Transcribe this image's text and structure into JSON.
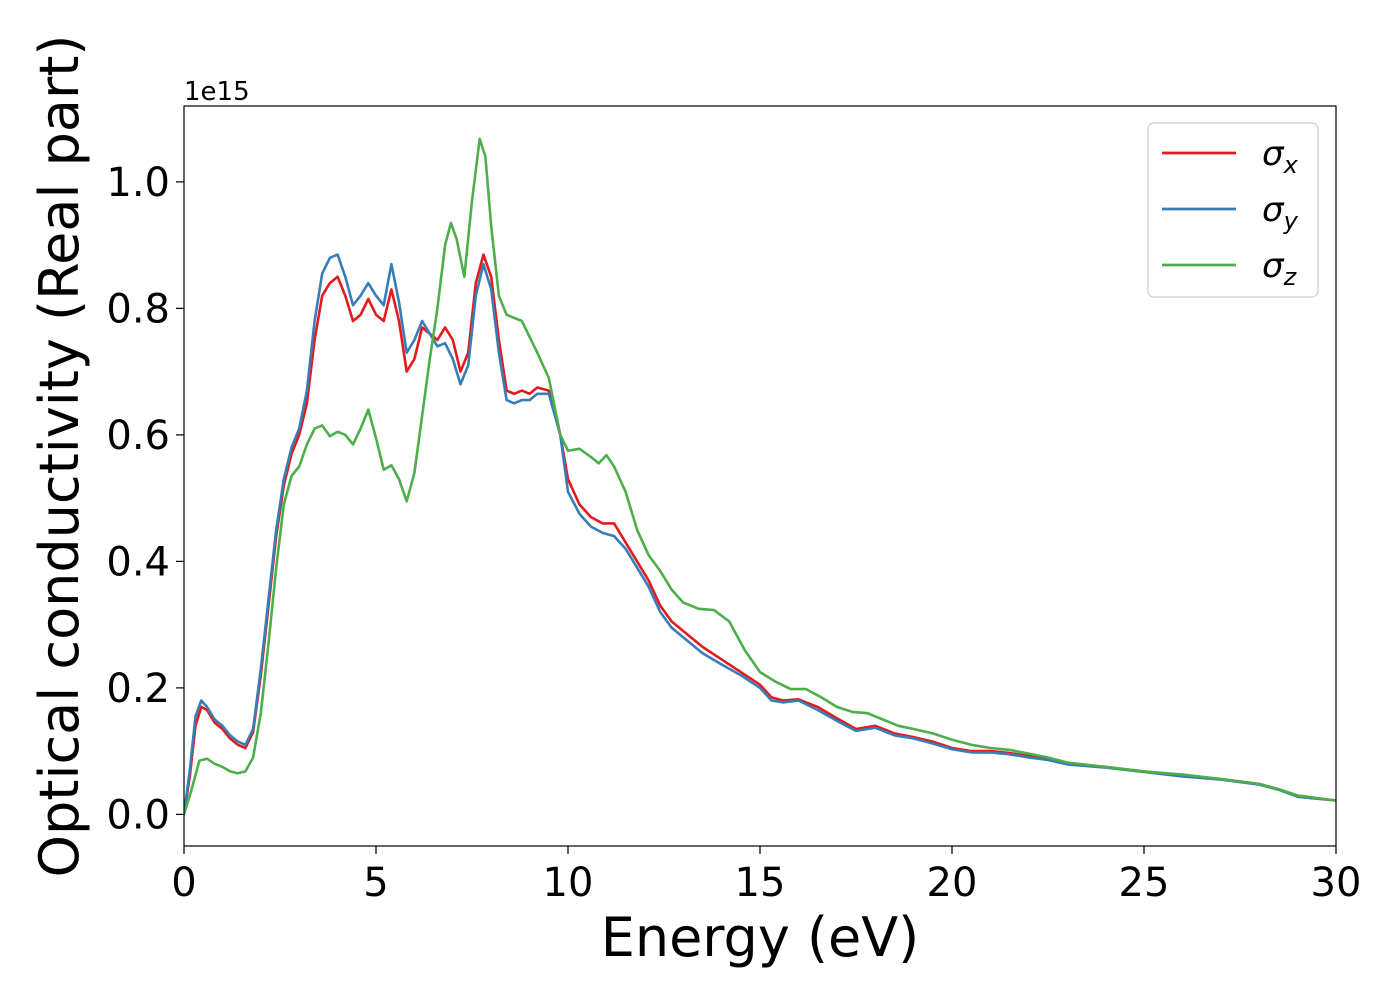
{
  "chart_data": {
    "type": "line",
    "xlabel": "Energy (eV)",
    "ylabel": "Optical conductivity (Real part)",
    "y_offset_label": "1e15",
    "xlim": [
      0,
      30
    ],
    "ylim": [
      -0.05,
      1.12
    ],
    "x_ticks": [
      0,
      5,
      10,
      15,
      20,
      25,
      30
    ],
    "x_tick_labels": [
      "0",
      "5",
      "10",
      "15",
      "20",
      "25",
      "30"
    ],
    "y_ticks": [
      0.0,
      0.2,
      0.4,
      0.6,
      0.8,
      1.0
    ],
    "y_tick_labels": [
      "0.0",
      "0.2",
      "0.4",
      "0.6",
      "0.8",
      "1.0"
    ],
    "grid": false,
    "legend_position": "top-right",
    "series": [
      {
        "name": "σx",
        "legend_symbol": "σ",
        "legend_subscript": "x",
        "color": "#e41a1c",
        "points": [
          [
            0,
            0.0
          ],
          [
            0.15,
            0.06
          ],
          [
            0.3,
            0.14
          ],
          [
            0.45,
            0.17
          ],
          [
            0.6,
            0.165
          ],
          [
            0.8,
            0.145
          ],
          [
            1.0,
            0.135
          ],
          [
            1.2,
            0.12
          ],
          [
            1.4,
            0.11
          ],
          [
            1.6,
            0.105
          ],
          [
            1.8,
            0.13
          ],
          [
            2.0,
            0.22
          ],
          [
            2.2,
            0.33
          ],
          [
            2.4,
            0.44
          ],
          [
            2.6,
            0.52
          ],
          [
            2.8,
            0.57
          ],
          [
            3.0,
            0.6
          ],
          [
            3.2,
            0.65
          ],
          [
            3.4,
            0.75
          ],
          [
            3.6,
            0.82
          ],
          [
            3.8,
            0.84
          ],
          [
            4.0,
            0.85
          ],
          [
            4.2,
            0.82
          ],
          [
            4.4,
            0.78
          ],
          [
            4.6,
            0.79
          ],
          [
            4.8,
            0.815
          ],
          [
            5.0,
            0.79
          ],
          [
            5.2,
            0.78
          ],
          [
            5.4,
            0.83
          ],
          [
            5.6,
            0.78
          ],
          [
            5.8,
            0.7
          ],
          [
            6.0,
            0.72
          ],
          [
            6.2,
            0.77
          ],
          [
            6.4,
            0.76
          ],
          [
            6.6,
            0.75
          ],
          [
            6.8,
            0.77
          ],
          [
            7.0,
            0.75
          ],
          [
            7.2,
            0.7
          ],
          [
            7.4,
            0.73
          ],
          [
            7.6,
            0.84
          ],
          [
            7.8,
            0.885
          ],
          [
            8.0,
            0.85
          ],
          [
            8.2,
            0.75
          ],
          [
            8.4,
            0.67
          ],
          [
            8.6,
            0.665
          ],
          [
            8.8,
            0.67
          ],
          [
            9.0,
            0.665
          ],
          [
            9.2,
            0.675
          ],
          [
            9.5,
            0.67
          ],
          [
            9.8,
            0.6
          ],
          [
            10.0,
            0.53
          ],
          [
            10.3,
            0.49
          ],
          [
            10.6,
            0.47
          ],
          [
            10.9,
            0.46
          ],
          [
            11.2,
            0.46
          ],
          [
            11.5,
            0.43
          ],
          [
            11.8,
            0.4
          ],
          [
            12.1,
            0.37
          ],
          [
            12.4,
            0.33
          ],
          [
            12.7,
            0.305
          ],
          [
            13.0,
            0.29
          ],
          [
            13.5,
            0.265
          ],
          [
            14.0,
            0.245
          ],
          [
            14.5,
            0.225
          ],
          [
            15.0,
            0.205
          ],
          [
            15.3,
            0.185
          ],
          [
            15.6,
            0.18
          ],
          [
            16.0,
            0.182
          ],
          [
            16.5,
            0.17
          ],
          [
            17.0,
            0.152
          ],
          [
            17.5,
            0.135
          ],
          [
            18.0,
            0.14
          ],
          [
            18.5,
            0.128
          ],
          [
            19.0,
            0.122
          ],
          [
            19.5,
            0.115
          ],
          [
            20.0,
            0.105
          ],
          [
            20.5,
            0.1
          ],
          [
            21.0,
            0.1
          ],
          [
            21.5,
            0.097
          ],
          [
            22.0,
            0.092
          ],
          [
            22.5,
            0.088
          ],
          [
            23.0,
            0.08
          ],
          [
            24.0,
            0.075
          ],
          [
            25.0,
            0.068
          ],
          [
            26.0,
            0.062
          ],
          [
            27.0,
            0.056
          ],
          [
            28.0,
            0.048
          ],
          [
            28.5,
            0.04
          ],
          [
            29.0,
            0.028
          ],
          [
            30.0,
            0.022
          ]
        ]
      },
      {
        "name": "σy",
        "legend_symbol": "σ",
        "legend_subscript": "y",
        "color": "#377eb8",
        "points": [
          [
            0,
            0.0
          ],
          [
            0.15,
            0.07
          ],
          [
            0.3,
            0.155
          ],
          [
            0.45,
            0.18
          ],
          [
            0.6,
            0.17
          ],
          [
            0.8,
            0.15
          ],
          [
            1.0,
            0.14
          ],
          [
            1.2,
            0.125
          ],
          [
            1.4,
            0.115
          ],
          [
            1.6,
            0.11
          ],
          [
            1.8,
            0.135
          ],
          [
            2.0,
            0.23
          ],
          [
            2.2,
            0.34
          ],
          [
            2.4,
            0.45
          ],
          [
            2.6,
            0.53
          ],
          [
            2.8,
            0.58
          ],
          [
            3.0,
            0.61
          ],
          [
            3.2,
            0.67
          ],
          [
            3.4,
            0.78
          ],
          [
            3.6,
            0.855
          ],
          [
            3.8,
            0.88
          ],
          [
            4.0,
            0.885
          ],
          [
            4.2,
            0.85
          ],
          [
            4.4,
            0.805
          ],
          [
            4.6,
            0.82
          ],
          [
            4.8,
            0.84
          ],
          [
            5.0,
            0.82
          ],
          [
            5.2,
            0.805
          ],
          [
            5.4,
            0.87
          ],
          [
            5.6,
            0.81
          ],
          [
            5.8,
            0.73
          ],
          [
            6.0,
            0.75
          ],
          [
            6.2,
            0.78
          ],
          [
            6.4,
            0.76
          ],
          [
            6.6,
            0.74
          ],
          [
            6.8,
            0.745
          ],
          [
            7.0,
            0.72
          ],
          [
            7.2,
            0.68
          ],
          [
            7.4,
            0.71
          ],
          [
            7.6,
            0.82
          ],
          [
            7.8,
            0.87
          ],
          [
            8.0,
            0.83
          ],
          [
            8.2,
            0.73
          ],
          [
            8.4,
            0.655
          ],
          [
            8.6,
            0.65
          ],
          [
            8.8,
            0.655
          ],
          [
            9.0,
            0.655
          ],
          [
            9.2,
            0.665
          ],
          [
            9.5,
            0.665
          ],
          [
            9.8,
            0.6
          ],
          [
            10.0,
            0.51
          ],
          [
            10.3,
            0.475
          ],
          [
            10.6,
            0.455
          ],
          [
            10.9,
            0.445
          ],
          [
            11.2,
            0.44
          ],
          [
            11.5,
            0.42
          ],
          [
            11.8,
            0.39
          ],
          [
            12.1,
            0.36
          ],
          [
            12.4,
            0.32
          ],
          [
            12.7,
            0.295
          ],
          [
            13.0,
            0.28
          ],
          [
            13.5,
            0.255
          ],
          [
            14.0,
            0.237
          ],
          [
            14.5,
            0.22
          ],
          [
            15.0,
            0.2
          ],
          [
            15.3,
            0.18
          ],
          [
            15.6,
            0.177
          ],
          [
            16.0,
            0.18
          ],
          [
            16.5,
            0.165
          ],
          [
            17.0,
            0.148
          ],
          [
            17.5,
            0.132
          ],
          [
            18.0,
            0.137
          ],
          [
            18.5,
            0.125
          ],
          [
            19.0,
            0.12
          ],
          [
            19.5,
            0.112
          ],
          [
            20.0,
            0.103
          ],
          [
            20.5,
            0.098
          ],
          [
            21.0,
            0.098
          ],
          [
            21.5,
            0.095
          ],
          [
            22.0,
            0.09
          ],
          [
            22.5,
            0.086
          ],
          [
            23.0,
            0.079
          ],
          [
            24.0,
            0.074
          ],
          [
            25.0,
            0.067
          ],
          [
            26.0,
            0.06
          ],
          [
            27.0,
            0.055
          ],
          [
            28.0,
            0.047
          ],
          [
            28.5,
            0.039
          ],
          [
            29.0,
            0.028
          ],
          [
            30.0,
            0.022
          ]
        ]
      },
      {
        "name": "σz",
        "legend_symbol": "σ",
        "legend_subscript": "z",
        "color": "#4daf4a",
        "points": [
          [
            0,
            0.0
          ],
          [
            0.2,
            0.04
          ],
          [
            0.4,
            0.085
          ],
          [
            0.6,
            0.088
          ],
          [
            0.8,
            0.08
          ],
          [
            1.0,
            0.075
          ],
          [
            1.2,
            0.068
          ],
          [
            1.4,
            0.065
          ],
          [
            1.6,
            0.068
          ],
          [
            1.8,
            0.09
          ],
          [
            2.0,
            0.16
          ],
          [
            2.2,
            0.27
          ],
          [
            2.4,
            0.39
          ],
          [
            2.6,
            0.49
          ],
          [
            2.8,
            0.535
          ],
          [
            3.0,
            0.55
          ],
          [
            3.2,
            0.585
          ],
          [
            3.4,
            0.61
          ],
          [
            3.6,
            0.615
          ],
          [
            3.8,
            0.598
          ],
          [
            4.0,
            0.605
          ],
          [
            4.2,
            0.6
          ],
          [
            4.4,
            0.585
          ],
          [
            4.6,
            0.61
          ],
          [
            4.8,
            0.64
          ],
          [
            5.0,
            0.595
          ],
          [
            5.2,
            0.545
          ],
          [
            5.4,
            0.552
          ],
          [
            5.6,
            0.53
          ],
          [
            5.8,
            0.495
          ],
          [
            6.0,
            0.54
          ],
          [
            6.2,
            0.63
          ],
          [
            6.4,
            0.72
          ],
          [
            6.6,
            0.8
          ],
          [
            6.8,
            0.9
          ],
          [
            6.95,
            0.935
          ],
          [
            7.1,
            0.91
          ],
          [
            7.3,
            0.85
          ],
          [
            7.5,
            0.97
          ],
          [
            7.7,
            1.068
          ],
          [
            7.85,
            1.04
          ],
          [
            8.0,
            0.93
          ],
          [
            8.2,
            0.82
          ],
          [
            8.4,
            0.79
          ],
          [
            8.6,
            0.785
          ],
          [
            8.8,
            0.78
          ],
          [
            9.0,
            0.755
          ],
          [
            9.2,
            0.73
          ],
          [
            9.5,
            0.69
          ],
          [
            9.8,
            0.6
          ],
          [
            10.0,
            0.575
          ],
          [
            10.3,
            0.578
          ],
          [
            10.6,
            0.565
          ],
          [
            10.8,
            0.555
          ],
          [
            11.0,
            0.568
          ],
          [
            11.2,
            0.55
          ],
          [
            11.5,
            0.51
          ],
          [
            11.8,
            0.45
          ],
          [
            12.1,
            0.41
          ],
          [
            12.4,
            0.385
          ],
          [
            12.7,
            0.355
          ],
          [
            13.0,
            0.335
          ],
          [
            13.4,
            0.325
          ],
          [
            13.8,
            0.323
          ],
          [
            14.2,
            0.305
          ],
          [
            14.6,
            0.26
          ],
          [
            15.0,
            0.225
          ],
          [
            15.4,
            0.21
          ],
          [
            15.8,
            0.198
          ],
          [
            16.2,
            0.198
          ],
          [
            16.6,
            0.185
          ],
          [
            17.0,
            0.17
          ],
          [
            17.4,
            0.162
          ],
          [
            17.8,
            0.16
          ],
          [
            18.2,
            0.15
          ],
          [
            18.6,
            0.14
          ],
          [
            19.0,
            0.135
          ],
          [
            19.5,
            0.128
          ],
          [
            20.0,
            0.118
          ],
          [
            20.5,
            0.11
          ],
          [
            21.0,
            0.105
          ],
          [
            21.5,
            0.102
          ],
          [
            22.0,
            0.096
          ],
          [
            22.5,
            0.09
          ],
          [
            23.0,
            0.082
          ],
          [
            24.0,
            0.075
          ],
          [
            25.0,
            0.068
          ],
          [
            26.0,
            0.063
          ],
          [
            27.0,
            0.056
          ],
          [
            28.0,
            0.048
          ],
          [
            28.5,
            0.04
          ],
          [
            29.0,
            0.03
          ],
          [
            30.0,
            0.022
          ]
        ]
      }
    ]
  }
}
